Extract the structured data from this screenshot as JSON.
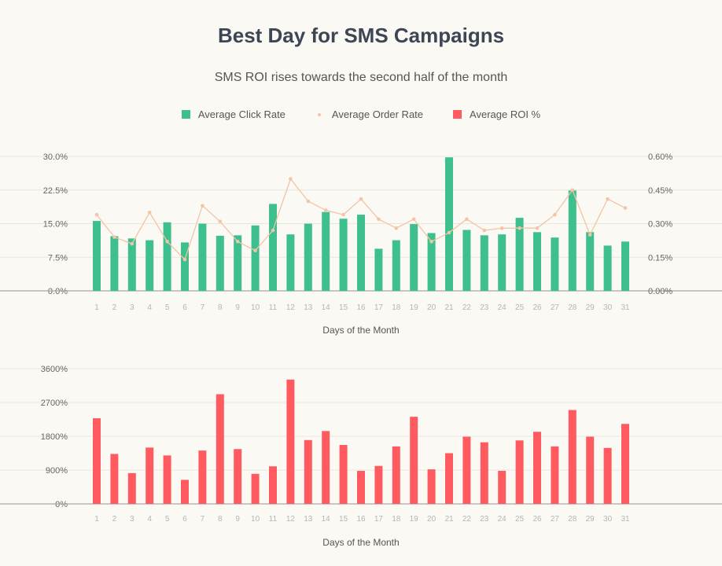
{
  "title": "Best Day for SMS Campaigns",
  "subtitle": "SMS ROI rises towards the second half of the month",
  "legend": [
    {
      "label": "Average Click Rate",
      "color": "#3dbf8e",
      "marker": "square"
    },
    {
      "label": "Average Order Rate",
      "color": "#f1c5a6",
      "marker": "dot"
    },
    {
      "label": "Average ROI %",
      "color": "#ff5a5f",
      "marker": "square"
    }
  ],
  "chart_data": [
    {
      "type": "bar",
      "xlabel": "Days of the Month",
      "categories": [
        "1",
        "2",
        "3",
        "4",
        "5",
        "6",
        "7",
        "8",
        "9",
        "10",
        "11",
        "12",
        "13",
        "14",
        "15",
        "16",
        "17",
        "18",
        "19",
        "20",
        "21",
        "22",
        "23",
        "24",
        "25",
        "26",
        "27",
        "28",
        "29",
        "30",
        "31"
      ],
      "grid": true,
      "series": [
        {
          "name": "Average Click Rate",
          "type": "bar",
          "axis": "left",
          "color": "#3dbf8e",
          "values": [
            15.6,
            12.2,
            11.7,
            11.3,
            15.3,
            10.8,
            15.0,
            12.3,
            12.4,
            14.6,
            19.4,
            12.6,
            15.0,
            17.6,
            16.1,
            17.0,
            9.4,
            11.3,
            14.9,
            12.9,
            29.8,
            13.6,
            12.4,
            12.6,
            16.3,
            13.1,
            11.9,
            22.4,
            13.1,
            10.1,
            11.0
          ]
        },
        {
          "name": "Average Order Rate",
          "type": "line",
          "axis": "right",
          "color": "#f1c5a6",
          "values": [
            0.34,
            0.24,
            0.21,
            0.35,
            0.22,
            0.14,
            0.38,
            0.31,
            0.22,
            0.18,
            0.27,
            0.5,
            0.4,
            0.36,
            0.34,
            0.41,
            0.32,
            0.28,
            0.32,
            0.22,
            0.26,
            0.32,
            0.27,
            0.28,
            0.28,
            0.28,
            0.34,
            0.45,
            0.25,
            0.41,
            0.37
          ]
        }
      ],
      "y_left": {
        "ticks": [
          "0.0%",
          "7.5%",
          "15.0%",
          "22.5%",
          "30.0%"
        ],
        "tick_values": [
          0,
          7.5,
          15,
          22.5,
          30
        ],
        "ylim": [
          0,
          30
        ]
      },
      "y_right": {
        "ticks": [
          "0.00%",
          "0.15%",
          "0.30%",
          "0.45%",
          "0.60%"
        ],
        "tick_values": [
          0,
          0.15,
          0.3,
          0.45,
          0.6
        ],
        "ylim": [
          0,
          0.6
        ]
      }
    },
    {
      "type": "bar",
      "xlabel": "Days of the Month",
      "categories": [
        "1",
        "2",
        "3",
        "4",
        "5",
        "6",
        "7",
        "8",
        "9",
        "10",
        "11",
        "12",
        "13",
        "14",
        "15",
        "16",
        "17",
        "18",
        "19",
        "20",
        "21",
        "22",
        "23",
        "24",
        "25",
        "26",
        "27",
        "28",
        "29",
        "30",
        "31"
      ],
      "grid": true,
      "series": [
        {
          "name": "Average ROI %",
          "type": "bar",
          "axis": "left",
          "color": "#ff5a5f",
          "values": [
            2280,
            1330,
            820,
            1500,
            1290,
            640,
            1420,
            2920,
            1460,
            800,
            1000,
            3310,
            1700,
            1940,
            1570,
            880,
            1010,
            1530,
            2320,
            920,
            1350,
            1790,
            1640,
            880,
            1690,
            1920,
            1530,
            2500,
            1790,
            1490,
            2130
          ]
        }
      ],
      "y_left": {
        "ticks": [
          "0%",
          "900%",
          "1800%",
          "2700%",
          "3600%"
        ],
        "tick_values": [
          0,
          900,
          1800,
          2700,
          3600
        ],
        "ylim": [
          0,
          3600
        ]
      }
    }
  ]
}
